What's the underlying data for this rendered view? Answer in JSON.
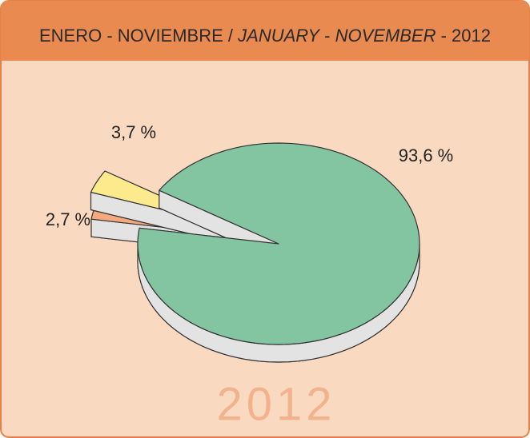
{
  "chart_data": {
    "type": "pie3d",
    "title": [
      "ENERO - NOVIEMBRE / ",
      "JANUARY",
      " - ",
      "NOVEMBER",
      " - 2012"
    ],
    "title_italic": [
      false,
      true,
      false,
      true,
      false
    ],
    "watermark": "2012",
    "values": [
      93.6,
      3.7,
      2.7
    ],
    "value_labels": [
      "93,6 %",
      "3,7 %",
      "2,7 %"
    ],
    "colors": [
      "#82c5a0",
      "#fdea8c",
      "#f5a97c"
    ],
    "exploded": [
      false,
      true,
      true
    ]
  }
}
